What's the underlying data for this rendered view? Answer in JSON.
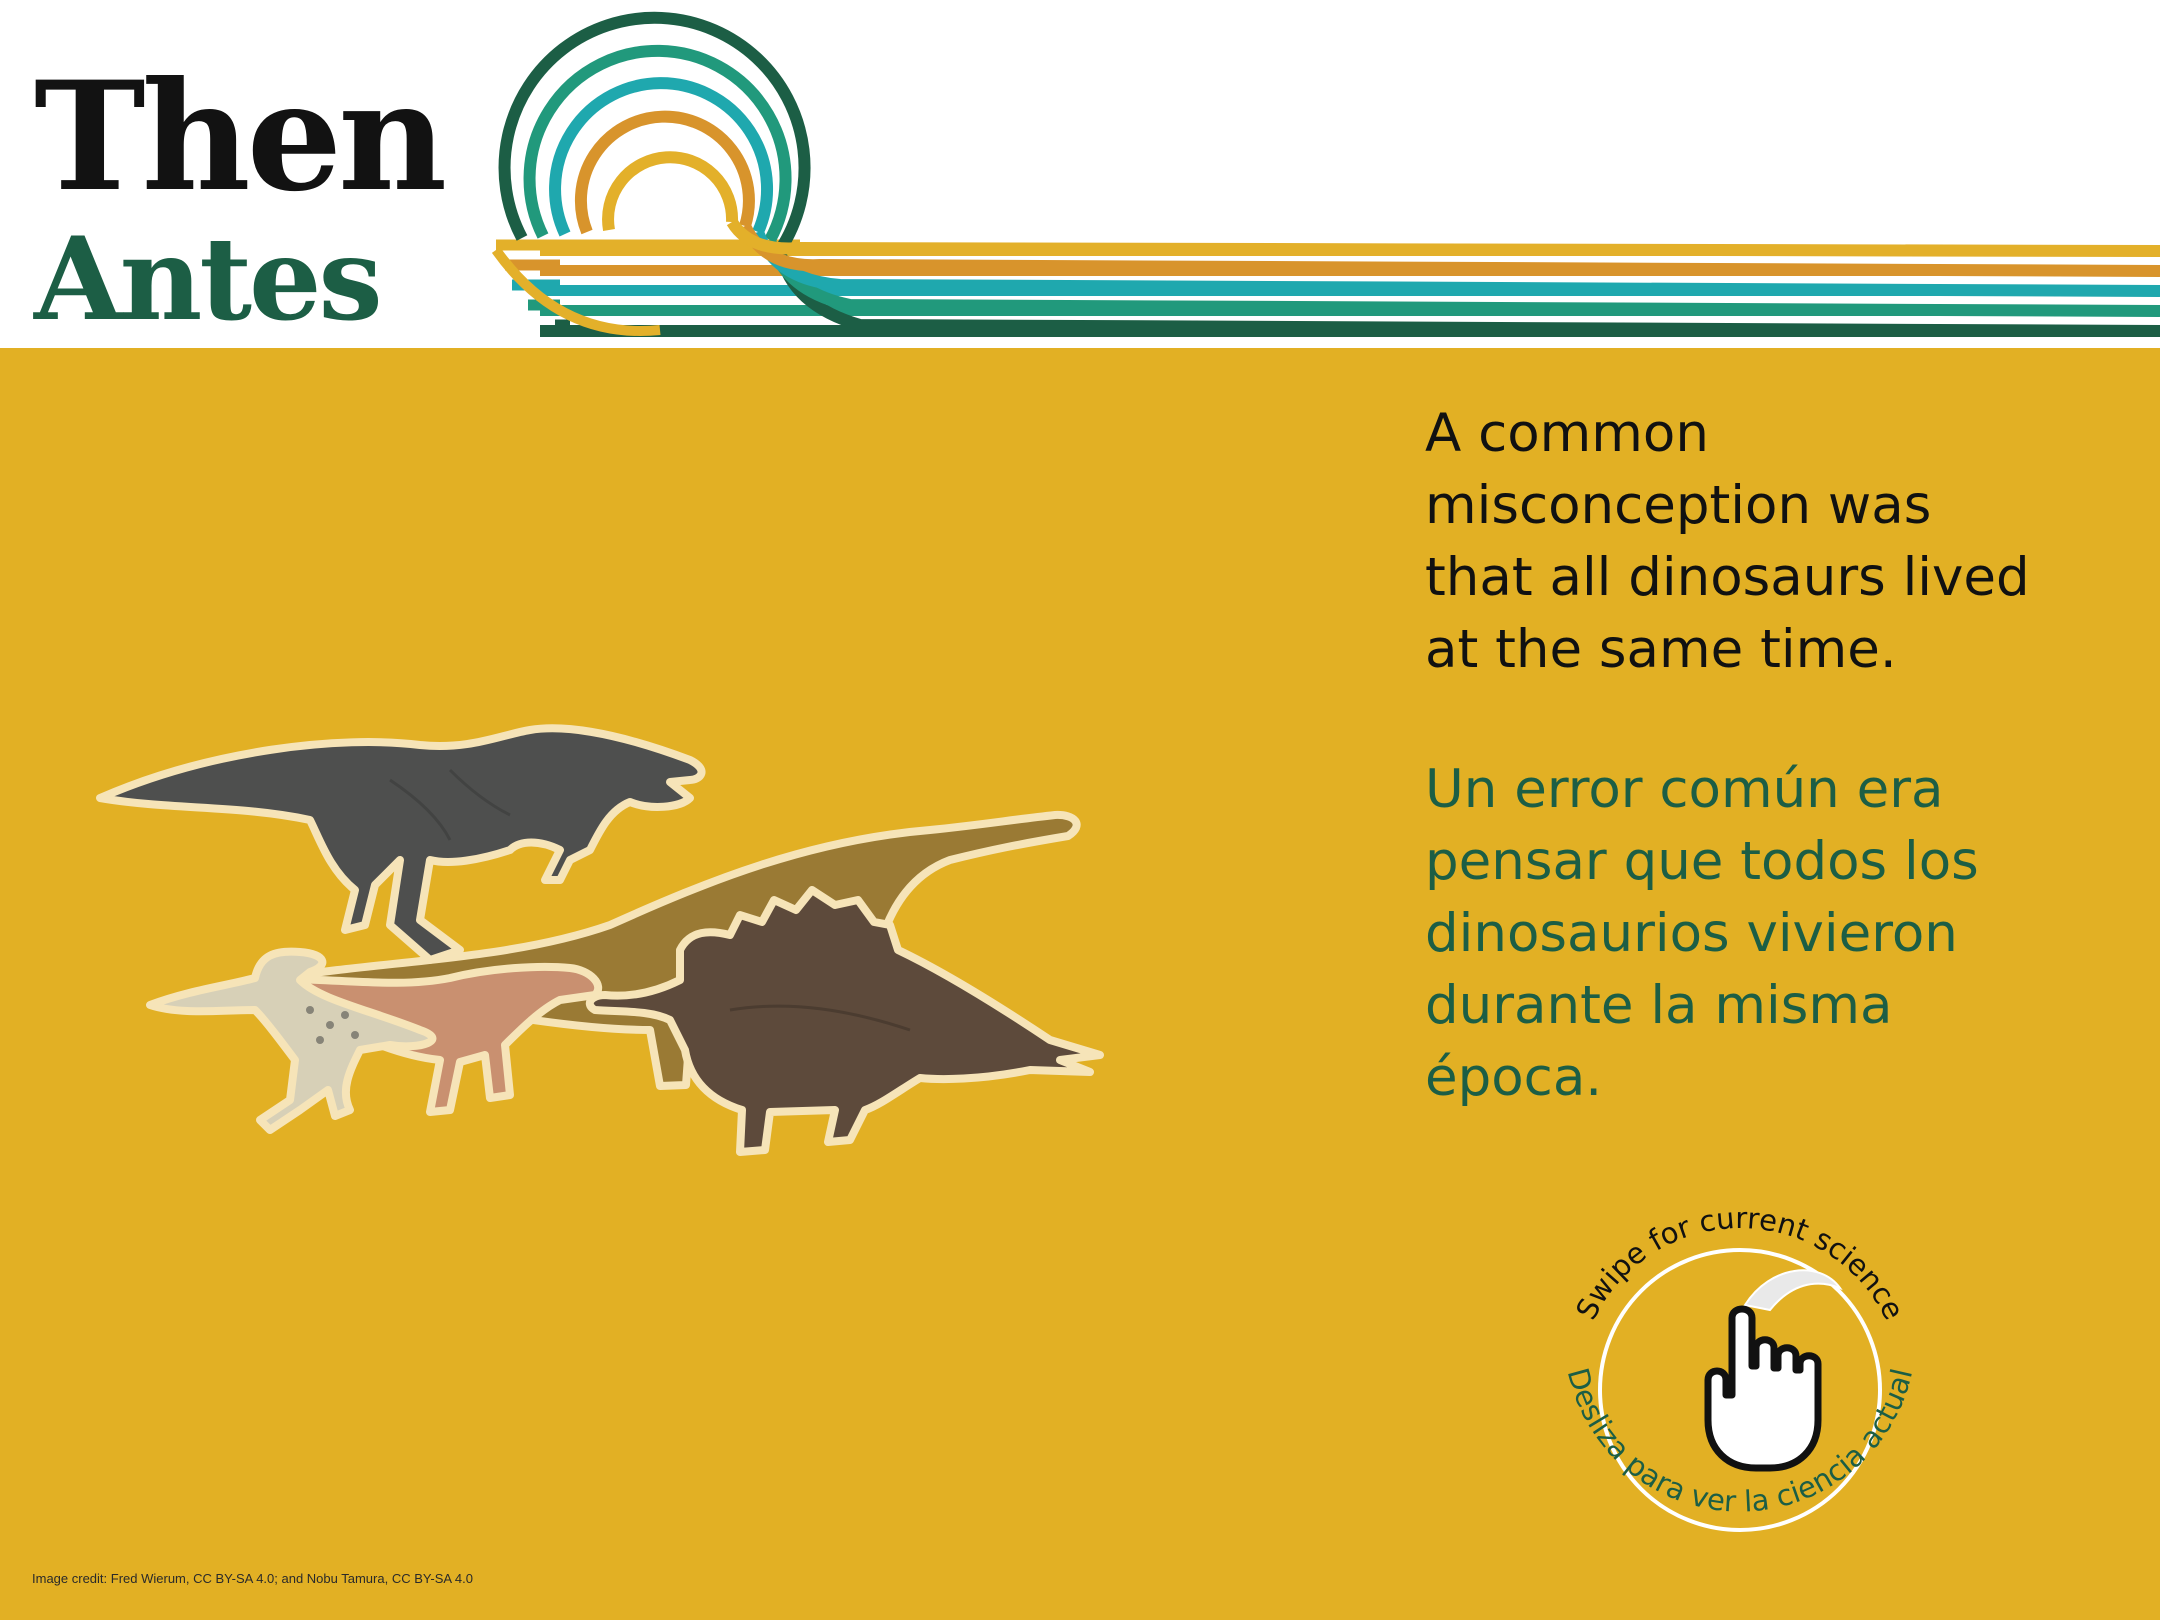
{
  "header": {
    "title_en": "Then",
    "title_es": "Antes"
  },
  "colors": {
    "panel": "#e2b024",
    "dark_green": "#1c5e45",
    "green": "#21997c",
    "teal": "#1fa8ae",
    "orange": "#d8942c",
    "gold": "#e3b02a"
  },
  "content": {
    "text_en_lines": [
      "A common",
      "misconception was",
      "that all dinosaurs lived",
      "at the same time."
    ],
    "text_es_lines": [
      "Un error común era",
      "pensar que todos los",
      "dinosaurios vivieron",
      "durante la misma",
      "época."
    ]
  },
  "swipe": {
    "label_en": "Swipe for current science",
    "label_es": "Desliza para ver la ciencia actual",
    "icon": "hand-swipe-icon"
  },
  "footer": {
    "credit": "Image credit: Fred Wierum, CC BY-SA 4.0; and Nobu Tamura, CC BY-SA 4.0"
  }
}
